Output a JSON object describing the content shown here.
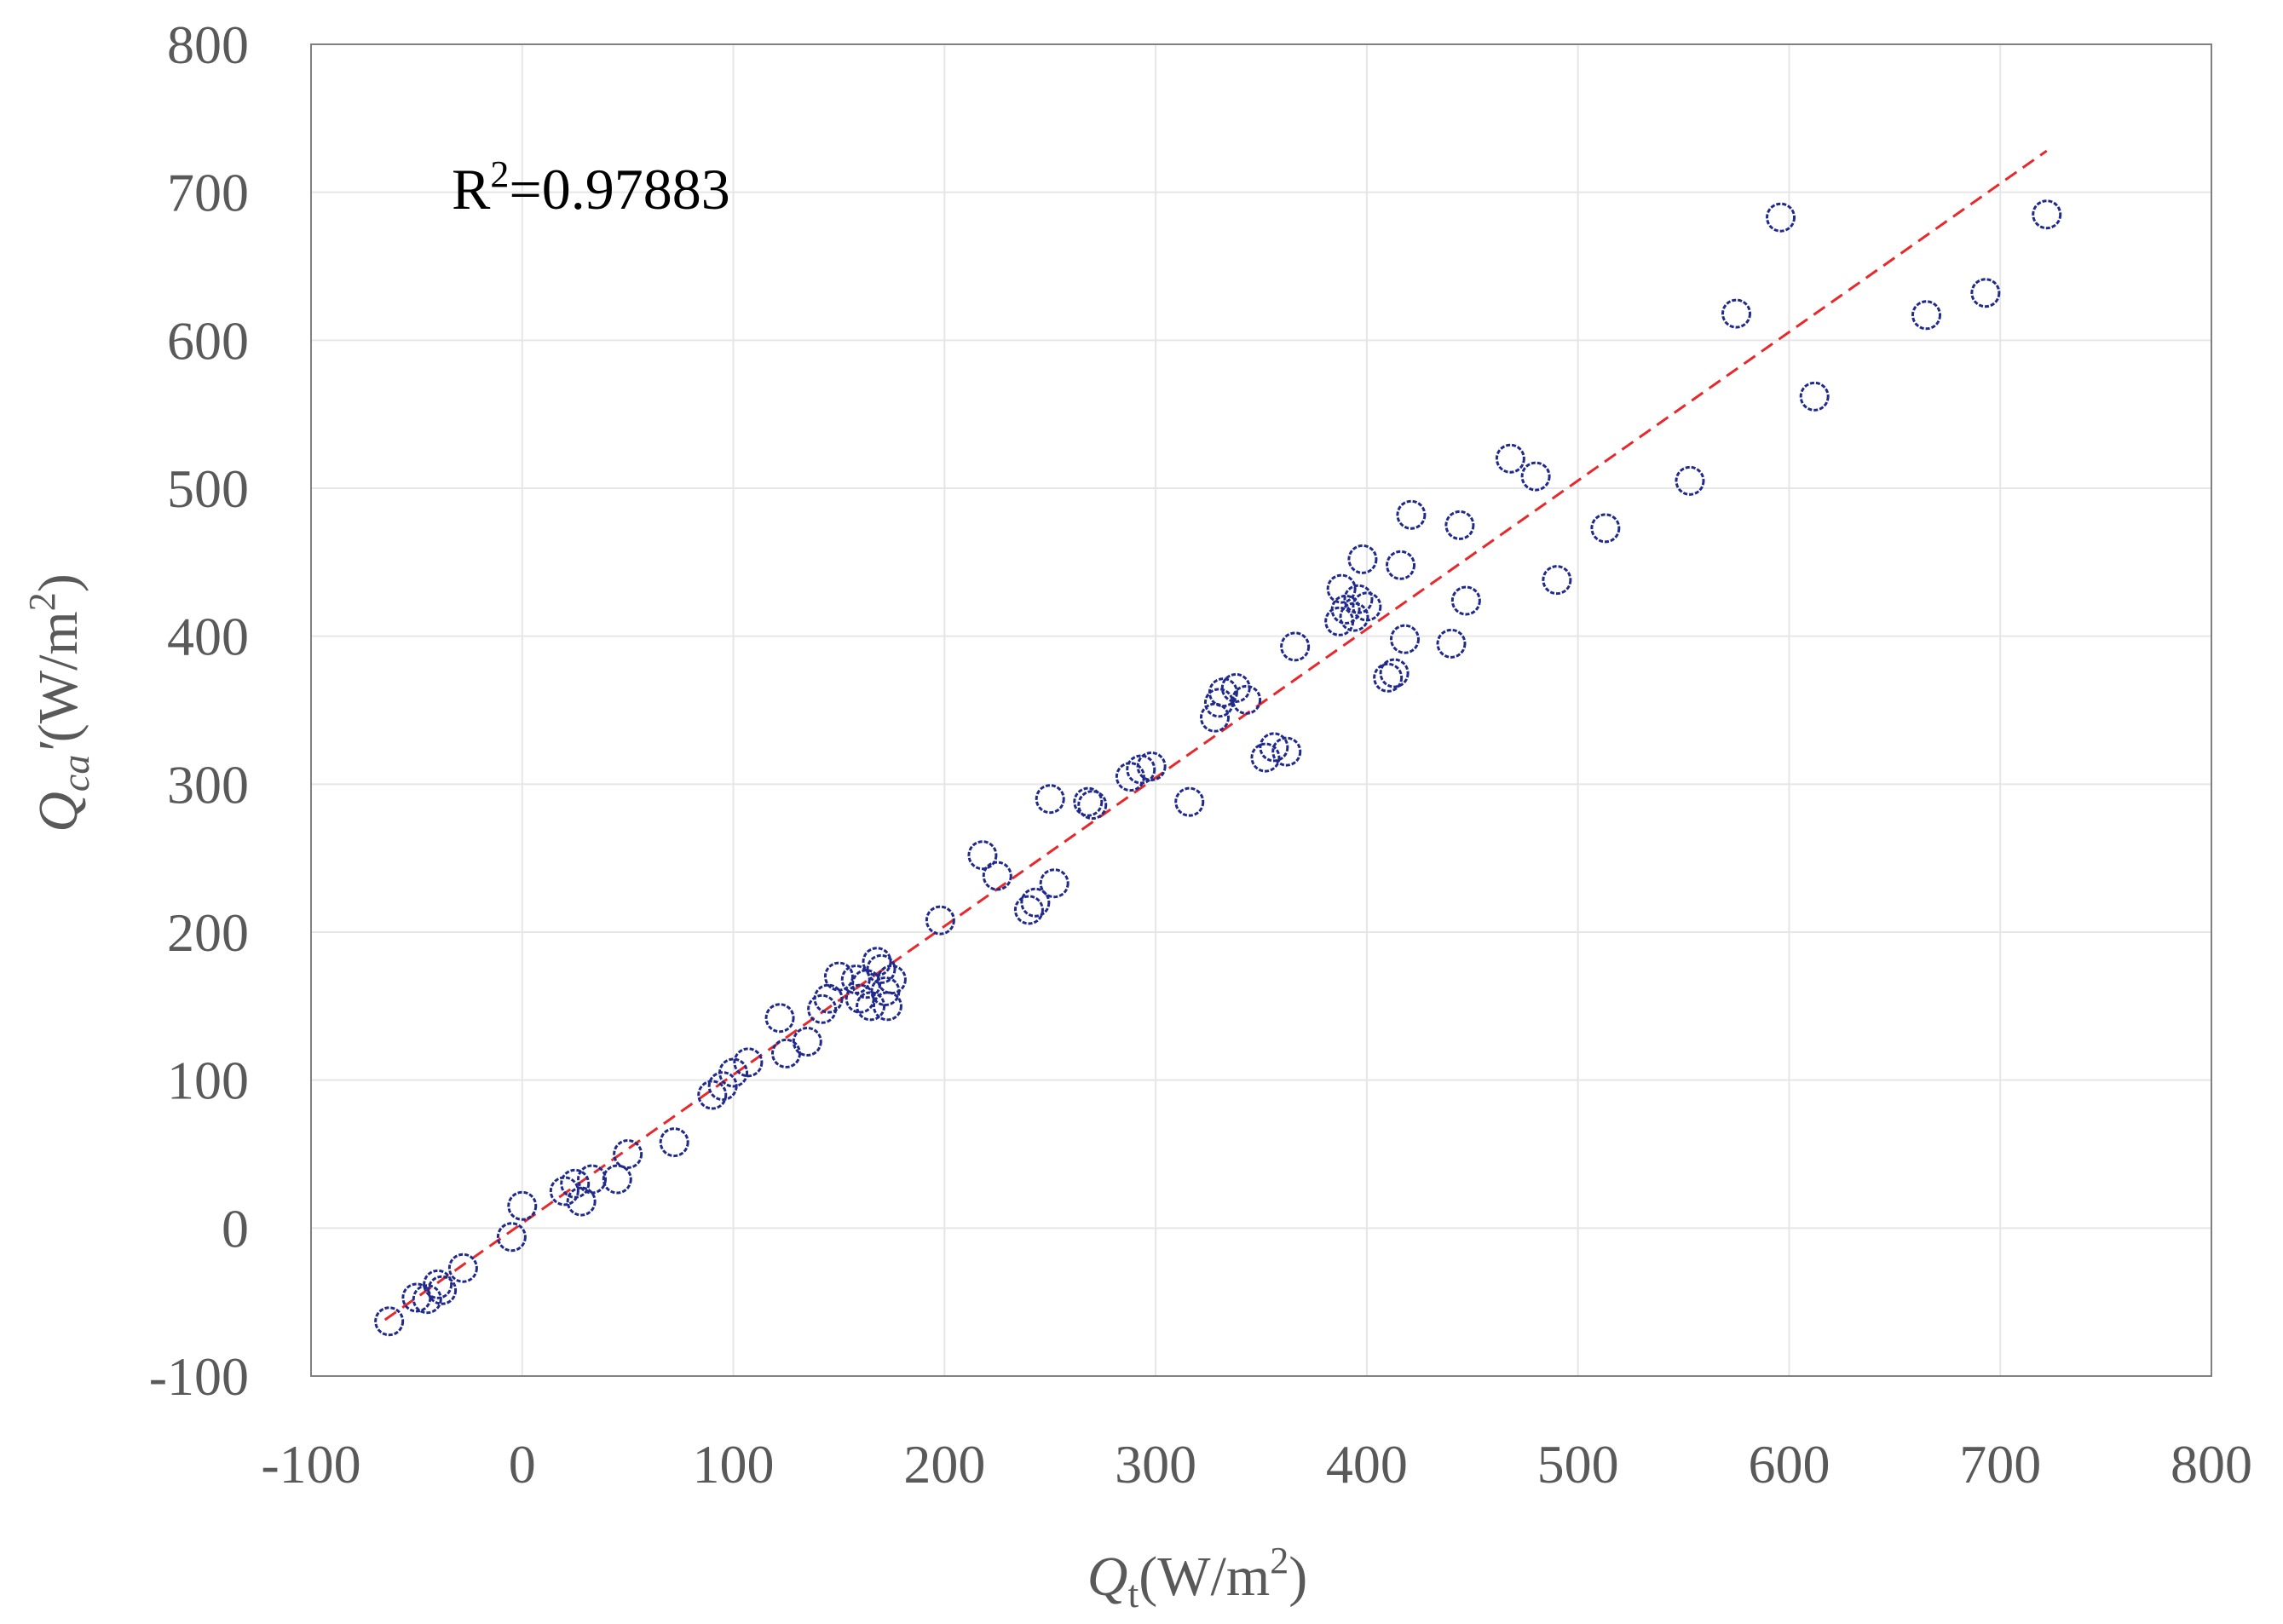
{
  "chart_data": {
    "type": "scatter",
    "title": "",
    "xlabel": {
      "main": "Q",
      "sub": "t",
      "unit_pre": "(W/m",
      "sup": "2",
      "unit_post": ")"
    },
    "ylabel": {
      "main": "Q",
      "sub": "ca",
      "prime": "′",
      "unit_pre": "(W/m",
      "sup": "2",
      "unit_post": ")"
    },
    "xlim": [
      -100,
      800
    ],
    "ylim": [
      -100,
      800
    ],
    "x_ticks": [
      -100,
      0,
      100,
      200,
      300,
      400,
      500,
      600,
      700,
      800
    ],
    "y_ticks": [
      -100,
      0,
      100,
      200,
      300,
      400,
      500,
      600,
      700,
      800
    ],
    "grid": true,
    "annotation": {
      "prefix": "R",
      "sup": "2",
      "suffix": "=0.97883"
    },
    "colors": {
      "points": "#1f2a8c",
      "fit": "#e8282b",
      "grid": "#e6e6e6",
      "axis": "#808080",
      "text": "#595959"
    },
    "fit_line": {
      "x": [
        -65,
        722
      ],
      "y": [
        -62,
        728
      ]
    },
    "series": [
      {
        "points": [
          [
            -63,
            -63
          ],
          [
            -50,
            -47
          ],
          [
            -45,
            -48
          ],
          [
            -40,
            -38
          ],
          [
            -38,
            -42
          ],
          [
            -28,
            -27
          ],
          [
            -5,
            -6
          ],
          [
            0,
            15
          ],
          [
            20,
            25
          ],
          [
            25,
            30
          ],
          [
            28,
            18
          ],
          [
            33,
            33
          ],
          [
            45,
            33
          ],
          [
            50,
            50
          ],
          [
            72,
            58
          ],
          [
            90,
            90
          ],
          [
            95,
            96
          ],
          [
            100,
            105
          ],
          [
            107,
            112
          ],
          [
            122,
            142
          ],
          [
            125,
            118
          ],
          [
            135,
            126
          ],
          [
            142,
            148
          ],
          [
            145,
            155
          ],
          [
            150,
            170
          ],
          [
            158,
            168
          ],
          [
            160,
            155
          ],
          [
            163,
            165
          ],
          [
            165,
            150
          ],
          [
            168,
            180
          ],
          [
            170,
            175
          ],
          [
            172,
            160
          ],
          [
            173,
            150
          ],
          [
            175,
            168
          ],
          [
            198,
            208
          ],
          [
            218,
            252
          ],
          [
            225,
            238
          ],
          [
            240,
            215
          ],
          [
            243,
            220
          ],
          [
            250,
            290
          ],
          [
            252,
            233
          ],
          [
            268,
            288
          ],
          [
            270,
            286
          ],
          [
            288,
            305
          ],
          [
            293,
            310
          ],
          [
            298,
            312
          ],
          [
            316,
            288
          ],
          [
            328,
            345
          ],
          [
            330,
            355
          ],
          [
            332,
            362
          ],
          [
            338,
            365
          ],
          [
            343,
            357
          ],
          [
            352,
            318
          ],
          [
            356,
            325
          ],
          [
            362,
            322
          ],
          [
            366,
            393
          ],
          [
            387,
            410
          ],
          [
            388,
            432
          ],
          [
            390,
            418
          ],
          [
            394,
            413
          ],
          [
            396,
            425
          ],
          [
            398,
            452
          ],
          [
            400,
            420
          ],
          [
            410,
            372
          ],
          [
            413,
            375
          ],
          [
            416,
            448
          ],
          [
            418,
            398
          ],
          [
            421,
            482
          ],
          [
            440,
            395
          ],
          [
            444,
            475
          ],
          [
            447,
            424
          ],
          [
            468,
            520
          ],
          [
            480,
            508
          ],
          [
            490,
            438
          ],
          [
            513,
            473
          ],
          [
            553,
            505
          ],
          [
            575,
            618
          ],
          [
            596,
            683
          ],
          [
            612,
            562
          ],
          [
            665,
            617
          ],
          [
            693,
            632
          ],
          [
            722,
            685
          ]
        ]
      }
    ]
  }
}
